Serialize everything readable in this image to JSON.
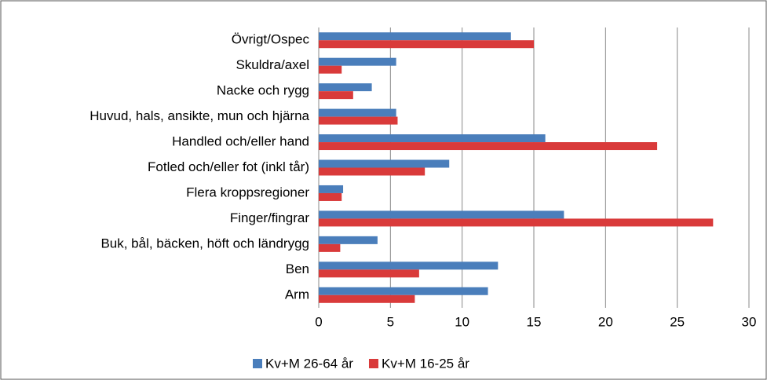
{
  "chart_data": {
    "type": "bar",
    "orientation": "horizontal",
    "categories": [
      "Övrigt/Ospec",
      "Skuldra/axel",
      "Nacke och rygg",
      "Huvud, hals, ansikte, mun och hjärna",
      "Handled och/eller hand",
      "Fotled och/eller fot (inkl tår)",
      "Flera kroppsregioner",
      "Finger/fingrar",
      "Buk, bål, bäcken, höft och ländrygg",
      "Ben",
      "Arm"
    ],
    "series": [
      {
        "name": "Kv+M 26-64 år",
        "color": "#4a7ebb",
        "values": [
          13.4,
          5.4,
          3.7,
          5.4,
          15.8,
          9.1,
          1.7,
          17.1,
          4.1,
          12.5,
          11.8
        ]
      },
      {
        "name": "Kv+M 16-25 år",
        "color": "#d93a3a",
        "values": [
          15.0,
          1.6,
          2.4,
          5.5,
          23.6,
          7.4,
          1.6,
          27.5,
          1.5,
          7.0,
          6.7
        ]
      }
    ],
    "xlim": [
      0,
      30
    ],
    "xticks": [
      0,
      5,
      10,
      15,
      20,
      25,
      30
    ],
    "grid": true,
    "legend": "bottom"
  }
}
